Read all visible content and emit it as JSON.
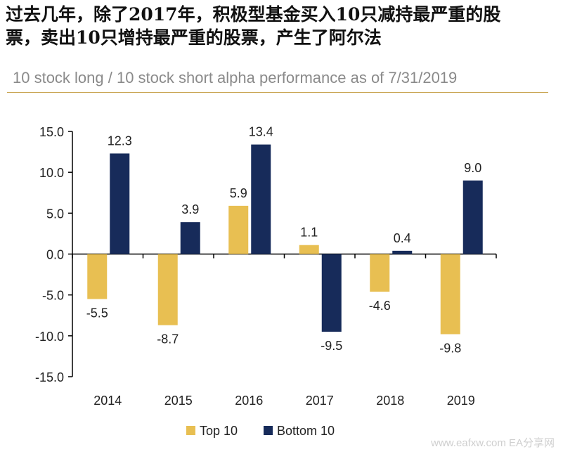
{
  "headline": {
    "line1": "过去几年，除了2017年，积极型基金买入10只减持最严重的股",
    "line2": "票，卖出10只增持最严重的股票，产生了阿尔法"
  },
  "watermark": "www.eafxw.com  EA分享网",
  "chart_data": {
    "type": "bar",
    "title": "10 stock long / 10 stock short alpha performance as of 7/31/2019",
    "xlabel": "",
    "ylabel": "",
    "categories": [
      "2014",
      "2015",
      "2016",
      "2017",
      "2018",
      "2019"
    ],
    "series": [
      {
        "name": "Top 10",
        "color": "#e8bf52",
        "values": [
          -5.5,
          -8.7,
          5.9,
          1.1,
          -4.6,
          -9.8
        ]
      },
      {
        "name": "Bottom 10",
        "color": "#172b5a",
        "values": [
          12.3,
          3.9,
          13.4,
          -9.5,
          0.4,
          9.0
        ]
      }
    ],
    "ylim": [
      -15,
      15
    ],
    "yticks": [
      "15.0",
      "10.0",
      "5.0",
      "0.0",
      "-5.0",
      "-10.0",
      "-15.0"
    ],
    "value_labels": [
      [
        "-5.5",
        "-8.7",
        "5.9",
        "1.1",
        "-4.6",
        "-9.8"
      ],
      [
        "12.3",
        "3.9",
        "13.4",
        "-9.5",
        "0.4",
        "9.0"
      ]
    ],
    "grid": false,
    "legend_position": "bottom-center"
  }
}
